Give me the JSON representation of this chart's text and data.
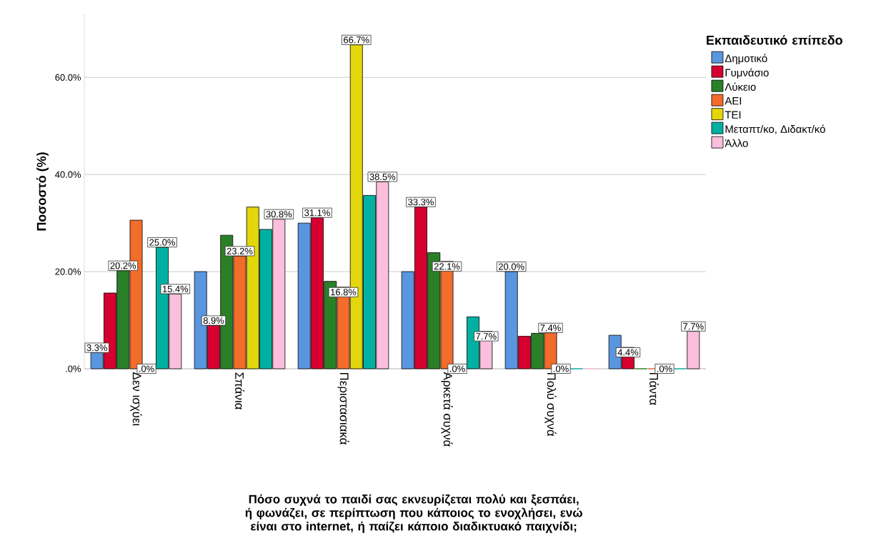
{
  "chart_data": {
    "type": "bar",
    "xlabel": "Πόσο συχνά το παιδί σας εκνευρίζεται πολύ και ξεσπάει, ή φωνάζει, σε περίπτωση που κάποιος το ενοχλήσει, ενώ είναι στο internet, ή παίζει κάποιο διαδικτυακό παιχνίδι;",
    "ylabel": "Ποσοστό (%)",
    "legend_title": "Εκπαιδευτικό επίπεδο",
    "categories": [
      "Δεν ισχύει",
      "Σπάνια",
      "Περιστασιακά",
      "Αρκετά συχνά",
      "Πολύ συχνά",
      "Πάντα"
    ],
    "series": [
      {
        "name": "Δημοτικό",
        "color": "#5a96e0",
        "values": [
          3.3,
          20.0,
          30.0,
          20.0,
          20.0,
          6.9
        ],
        "value_labels": [
          "3.3%",
          null,
          null,
          null,
          "20.0%",
          null
        ]
      },
      {
        "name": "Γυμνάσιο",
        "color": "#d6002f",
        "values": [
          15.6,
          8.9,
          31.1,
          33.3,
          6.7,
          4.4
        ],
        "value_labels": [
          null,
          "8.9%",
          "31.1%",
          "33.3%",
          null,
          "4.4%"
        ]
      },
      {
        "name": "Λύκειο",
        "color": "#2a8027",
        "values": [
          20.2,
          27.5,
          18.0,
          23.9,
          7.3,
          0
        ],
        "value_labels": [
          "20.2%",
          null,
          null,
          null,
          null,
          null
        ]
      },
      {
        "name": "ΑΕΙ",
        "color": "#f26c2a",
        "values": [
          30.6,
          23.2,
          16.8,
          22.1,
          7.4,
          0
        ],
        "value_labels": [
          null,
          "23.2%",
          "16.8%",
          "22.1%",
          "7.4%",
          null
        ]
      },
      {
        "name": "ΤΕΙ",
        "color": "#e3d60b",
        "values": [
          0,
          33.3,
          66.7,
          0,
          0,
          0
        ],
        "value_labels": [
          null,
          null,
          "66.7%",
          null,
          null,
          null
        ]
      },
      {
        "name": "Μεταπτ/κο, Διδακτ/κό",
        "color": "#00b0a0",
        "values": [
          25.0,
          28.7,
          35.7,
          10.7,
          0,
          0
        ],
        "value_labels": [
          "25.0%",
          null,
          null,
          null,
          null,
          null
        ]
      },
      {
        "name": "Άλλο",
        "color": "#fbbedd",
        "values": [
          15.4,
          30.8,
          38.5,
          7.7,
          0,
          7.7
        ],
        "value_labels": [
          "15.4%",
          "30.8%",
          "38.5%",
          "7.7%",
          null,
          "7.7%"
        ]
      }
    ],
    "ylim": [
      0,
      73
    ],
    "yticks": [
      {
        "value": 0,
        "label": ".0%"
      },
      {
        "value": 20,
        "label": "20.0%"
      },
      {
        "value": 40,
        "label": "40.0%"
      },
      {
        "value": 60,
        "label": "60.0%"
      }
    ],
    "annotations": [
      {
        "text": ".0%",
        "x": "Δεν ισχύει",
        "y": 0
      },
      {
        "text": ".0%",
        "x": "Αρκετά συχνά",
        "y": 0
      },
      {
        "text": ".0%",
        "x": "Πολύ συχνά",
        "y": 0
      },
      {
        "text": ".0%",
        "x": "Πάντα",
        "y": 0
      }
    ],
    "grid": "y",
    "legend": "right"
  }
}
